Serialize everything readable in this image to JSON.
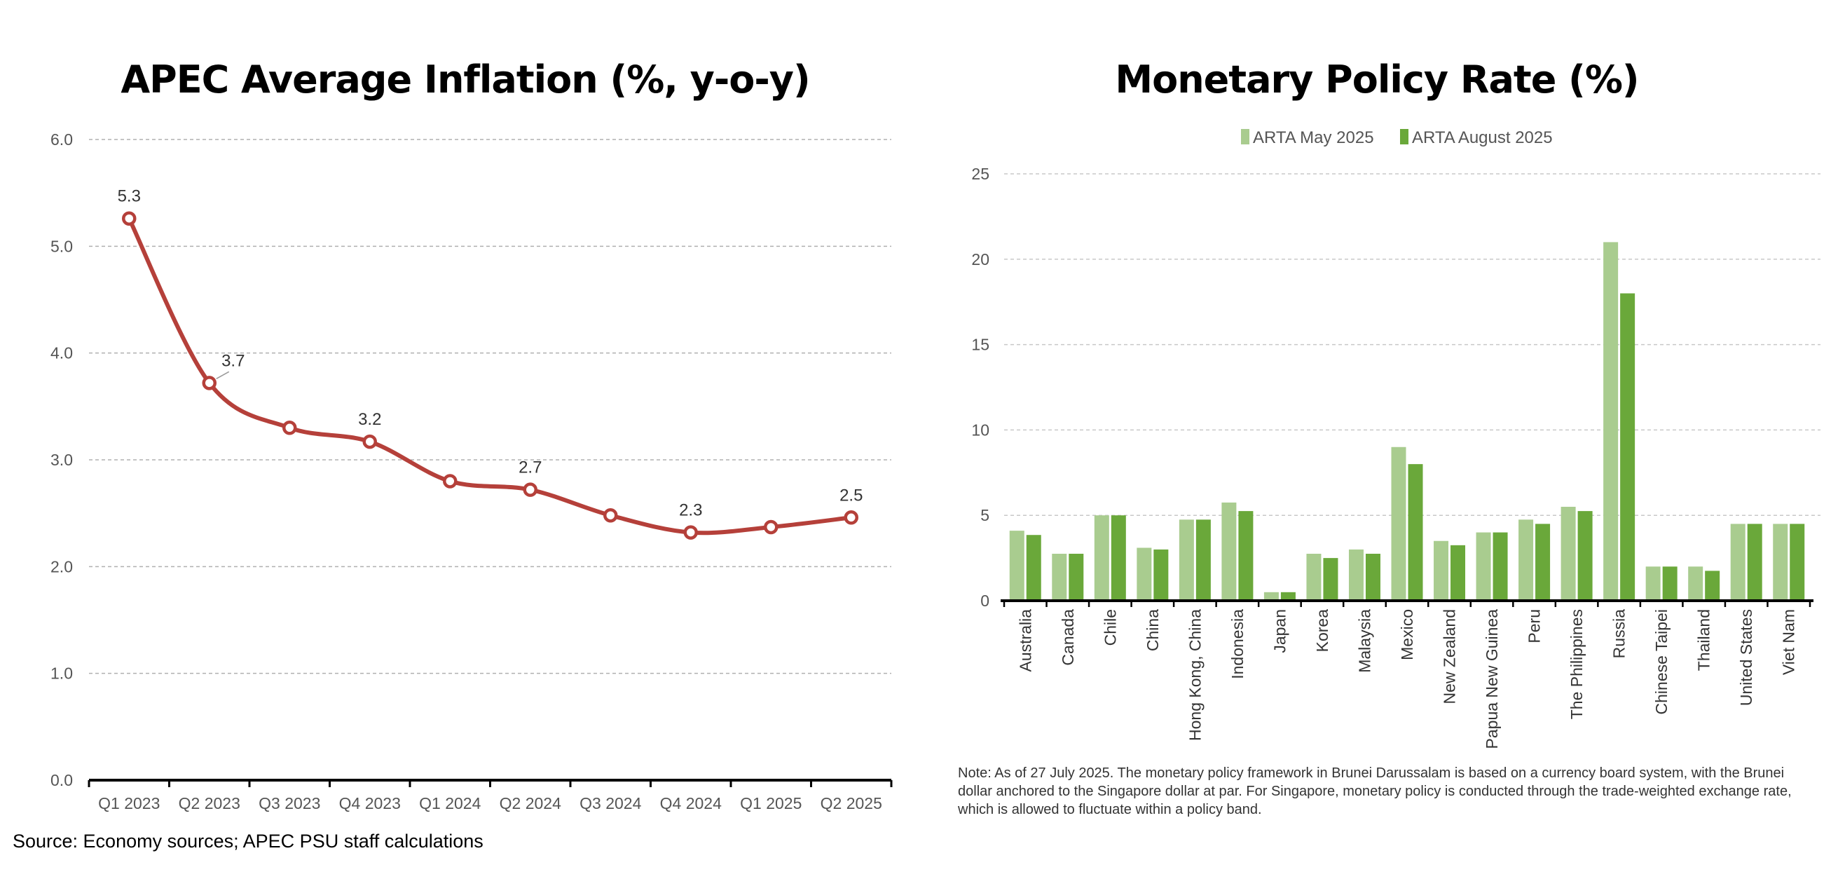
{
  "chart_data": [
    {
      "type": "line",
      "title": "APEC Average Inflation (%, y-o-y)",
      "xlabel": "",
      "ylabel": "",
      "categories": [
        "Q1 2023",
        "Q2 2023",
        "Q3 2023",
        "Q4 2023",
        "Q1 2024",
        "Q2 2024",
        "Q3 2024",
        "Q4 2024",
        "Q1 2025",
        "Q2 2025"
      ],
      "series": [
        {
          "values": [
            5.26,
            3.72,
            3.3,
            3.17,
            2.8,
            2.72,
            2.48,
            2.32,
            2.37,
            2.46
          ]
        }
      ],
      "data_labels": [
        {
          "index": 0,
          "text": "5.3"
        },
        {
          "index": 1,
          "text": "3.7"
        },
        {
          "index": 3,
          "text": "3.2"
        },
        {
          "index": 5,
          "text": "2.7"
        },
        {
          "index": 7,
          "text": "2.3"
        },
        {
          "index": 9,
          "text": "2.5"
        }
      ],
      "ylim": [
        0,
        6
      ],
      "yticks": [
        "0.0",
        "1.0",
        "2.0",
        "3.0",
        "4.0",
        "5.0",
        "6.0"
      ],
      "grid": true,
      "legend": "none",
      "colors": {
        "line": "#b5403a",
        "marker_fill": "#ffffff"
      }
    },
    {
      "type": "bar",
      "title": "Monetary Policy Rate (%)",
      "xlabel": "",
      "ylabel": "",
      "categories": [
        "Australia",
        "Canada",
        "Chile",
        "China",
        "Hong Kong, China",
        "Indonesia",
        "Japan",
        "Korea",
        "Malaysia",
        "Mexico",
        "New Zealand",
        "Papua New Guinea",
        "Peru",
        "The Philippines",
        "Russia",
        "Chinese Taipei",
        "Thailand",
        "United States",
        "Viet Nam"
      ],
      "series": [
        {
          "name": "ARTA May 2025",
          "values": [
            4.1,
            2.75,
            5.0,
            3.1,
            4.75,
            5.75,
            0.5,
            2.75,
            3.0,
            9.0,
            3.5,
            4.0,
            4.75,
            5.5,
            21.0,
            2.0,
            2.0,
            4.5,
            4.5
          ]
        },
        {
          "name": "ARTA August 2025",
          "values": [
            3.85,
            2.75,
            5.0,
            3.0,
            4.75,
            5.25,
            0.5,
            2.5,
            2.75,
            8.0,
            3.25,
            4.0,
            4.5,
            5.25,
            18.0,
            2.0,
            1.75,
            4.5,
            4.5
          ]
        }
      ],
      "ylim": [
        0,
        25
      ],
      "yticks": [
        "0",
        "5",
        "10",
        "15",
        "20",
        "25"
      ],
      "grid": true,
      "legend": "top-center",
      "colors": {
        "ARTA May 2025": "#a9cc8f",
        "ARTA August 2025": "#6aa83a"
      }
    }
  ],
  "footer": {
    "source": "Source: Economy sources; APEC PSU staff calculations",
    "note": "Note: As of 27 July 2025. The monetary policy framework in Brunei Darussalam is based on a currency board system, with the Brunei dollar anchored to the Singapore dollar at par. For Singapore, monetary policy is conducted through the trade-weighted exchange rate, which is allowed to fluctuate within a policy band."
  }
}
